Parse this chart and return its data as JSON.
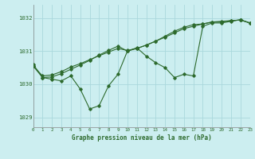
{
  "xlabel": "Graphe pression niveau de la mer (hPa)",
  "background_color": "#cceef0",
  "grid_color": "#aad8dc",
  "line_color": "#2d6a2d",
  "marker_color": "#2d6a2d",
  "xlim": [
    0,
    23
  ],
  "ylim": [
    1028.7,
    1032.4
  ],
  "yticks": [
    1029,
    1030,
    1031,
    1032
  ],
  "xticks": [
    0,
    1,
    2,
    3,
    4,
    5,
    6,
    7,
    8,
    9,
    10,
    11,
    12,
    13,
    14,
    15,
    16,
    17,
    18,
    19,
    20,
    21,
    22,
    23
  ],
  "series1": [
    1030.6,
    1030.2,
    1030.15,
    1030.1,
    1030.25,
    1029.85,
    1029.25,
    1029.35,
    1029.95,
    1030.3,
    1031.0,
    1031.1,
    1030.85,
    1030.65,
    1030.5,
    1030.2,
    1030.3,
    1030.25,
    1031.75,
    1031.85,
    1031.85,
    1031.9,
    1031.95,
    1031.85
  ],
  "series2": [
    1030.55,
    1030.25,
    1030.28,
    1030.38,
    1030.52,
    1030.62,
    1030.74,
    1030.86,
    1030.97,
    1031.08,
    1031.02,
    1031.08,
    1031.18,
    1031.3,
    1031.42,
    1031.55,
    1031.68,
    1031.75,
    1031.82,
    1031.88,
    1031.88,
    1031.92,
    1031.94,
    1031.85
  ],
  "series3": [
    1030.55,
    1030.2,
    1030.22,
    1030.32,
    1030.45,
    1030.58,
    1030.72,
    1030.88,
    1031.02,
    1031.15,
    1031.0,
    1031.08,
    1031.18,
    1031.3,
    1031.45,
    1031.6,
    1031.72,
    1031.8,
    1031.82,
    1031.88,
    1031.9,
    1031.92,
    1031.94,
    1031.85
  ]
}
